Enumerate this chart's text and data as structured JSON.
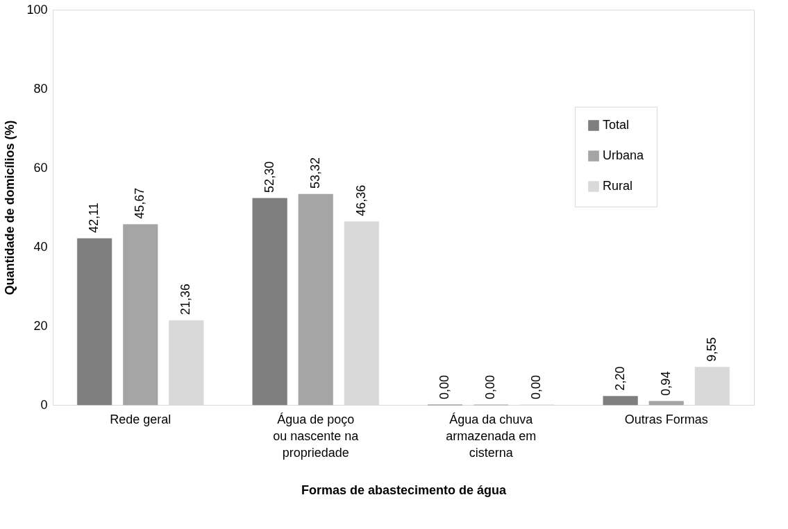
{
  "chart_data": {
    "type": "bar",
    "xlabel": "Formas de abastecimento de água",
    "ylabel": "Quantidade de domicílios (%)",
    "categories": [
      "Rede geral",
      "Água de poço ou nascente na propriedade",
      "Água da chuva armazenada em cisterna",
      "Outras Formas"
    ],
    "series": [
      {
        "name": "Total",
        "color": "#7f7f7f",
        "values": [
          42.11,
          52.3,
          0.0,
          2.2
        ],
        "value_labels": [
          "42,11",
          "52,30",
          "0,00",
          "2,20"
        ]
      },
      {
        "name": "Urbana",
        "color": "#a5a5a5",
        "values": [
          45.67,
          53.32,
          0.0,
          0.94
        ],
        "value_labels": [
          "45,67",
          "53,32",
          "0,00",
          "0,94"
        ]
      },
      {
        "name": "Rural",
        "color": "#d9d9d9",
        "values": [
          21.36,
          46.36,
          0.0,
          9.55
        ],
        "value_labels": [
          "21,36",
          "46,36",
          "0,00",
          "9,55"
        ]
      }
    ],
    "ylim": [
      0,
      100
    ],
    "yticks": [
      0,
      20,
      40,
      60,
      80,
      100
    ],
    "grid": false,
    "legend": "top right"
  }
}
